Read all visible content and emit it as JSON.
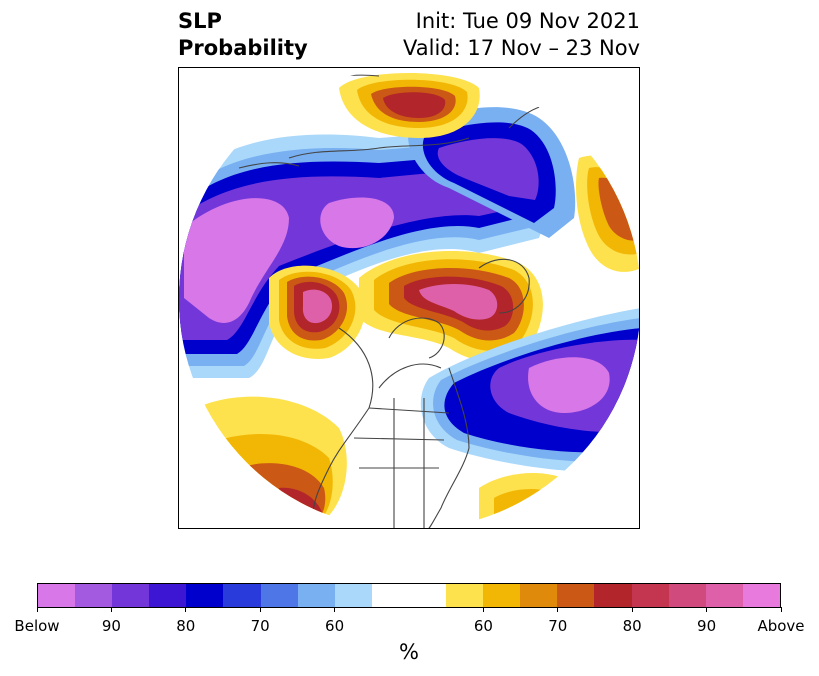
{
  "header": {
    "variable": "SLP",
    "product": "Probability",
    "init": "Init: Tue 09 Nov 2021",
    "valid": "Valid: 17 Nov – 23 Nov"
  },
  "colorbar": {
    "colors": [
      "#d777e8",
      "#a35ae1",
      "#7337d9",
      "#3d16d4",
      "#0000cc",
      "#2a3bdc",
      "#4f76e6",
      "#78b0f1",
      "#aad8fa",
      "#ffffff",
      "#ffffff",
      "#fde24d",
      "#f2b705",
      "#e08a0c",
      "#cb5814",
      "#b2252a",
      "#c4354f",
      "#d14a7e",
      "#de60a8",
      "#e879dd"
    ],
    "tick_labels": [
      "Below",
      "90",
      "80",
      "70",
      "60",
      "60",
      "70",
      "80",
      "90",
      "Above"
    ],
    "unit": "%"
  },
  "map_colors": {
    "below_strong": "#d777e8",
    "below_mid": "#7337d9",
    "below_core": "#0000cc",
    "below_weak": "#78b0f1",
    "below_faint": "#aad8fa",
    "above_faint": "#fde24d",
    "above_weak": "#f2b705",
    "above_mid": "#cb5814",
    "above_strong": "#b2252a",
    "above_core": "#de60a8",
    "coastline": "#444444"
  }
}
